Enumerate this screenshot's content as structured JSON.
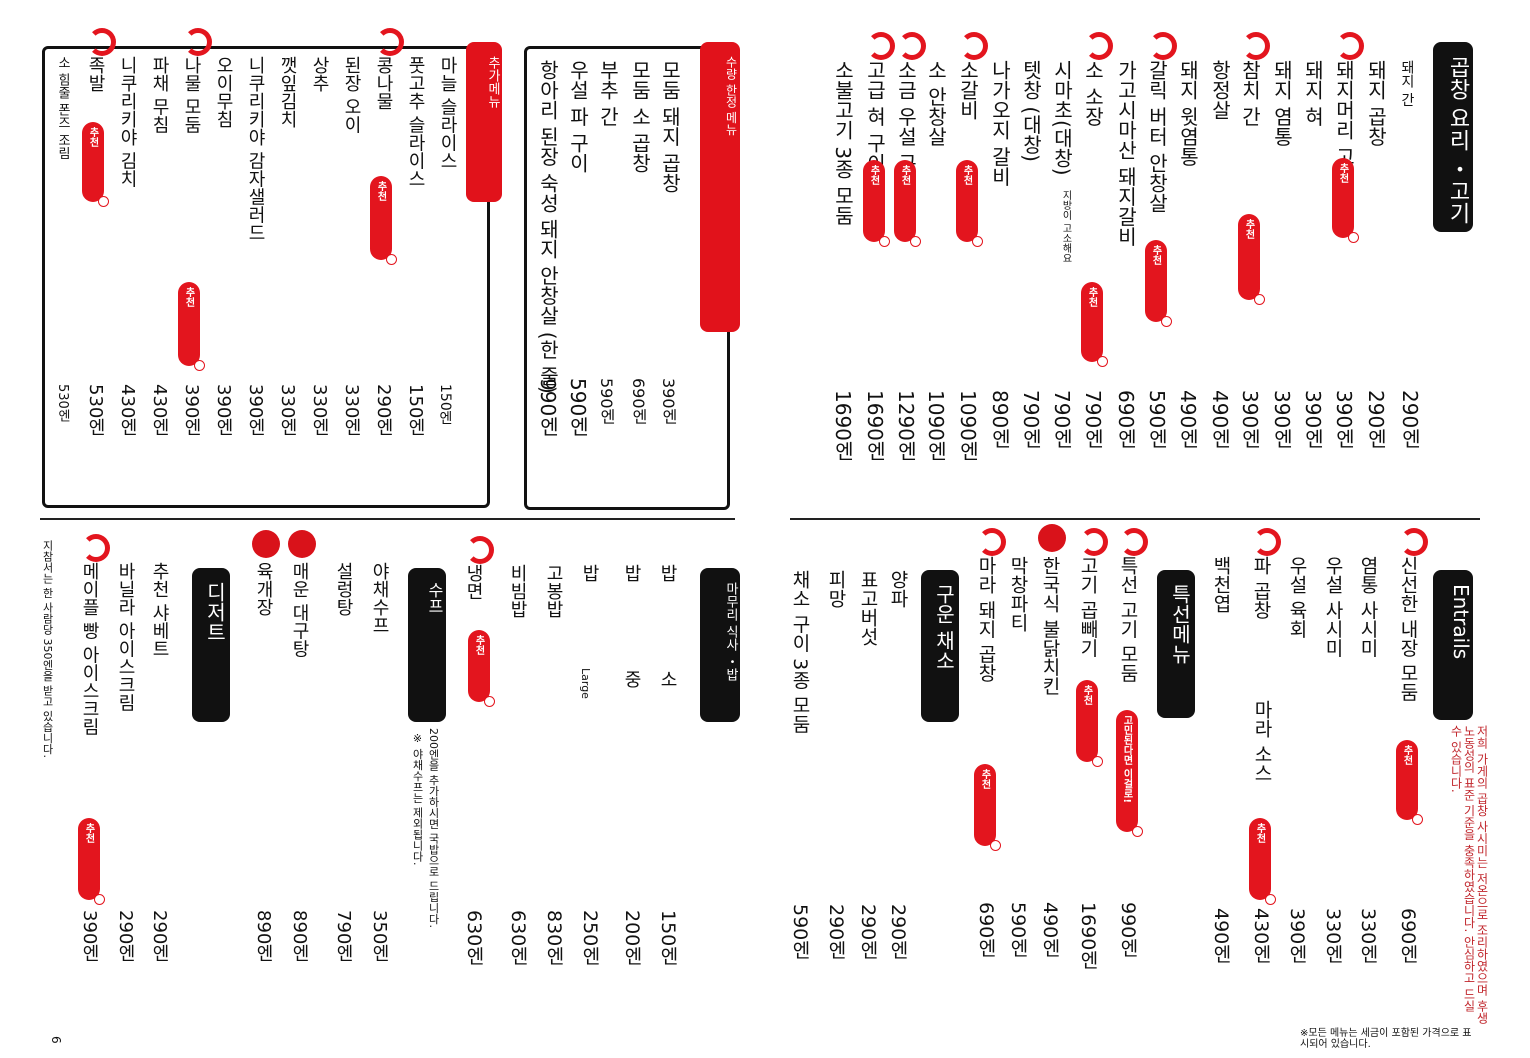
{
  "goopchang": {
    "title": "곱창 요리 ・고기",
    "items": [
      {
        "name": "돼지 간",
        "price": "290엔"
      },
      {
        "name": "돼지 곱창",
        "price": "290엔"
      },
      {
        "name": "돼지머리 고기",
        "price": "390엔",
        "badge": "추천"
      },
      {
        "name": "돼지 혀",
        "price": "390엔"
      },
      {
        "name": "돼지 염통",
        "price": "390엔"
      },
      {
        "name": "참치 간",
        "price": "390엔",
        "badge": "추천"
      },
      {
        "name": "항정살",
        "price": "490엔"
      },
      {
        "name": "돼지 윗염통",
        "price": "490엔"
      },
      {
        "name": "갈릭 버터 안창살",
        "price": "590엔",
        "badge": "추천"
      },
      {
        "name": "가고시마산 돼지갈비",
        "price": "690엔"
      },
      {
        "name": "소 소장",
        "price": "790엔",
        "badge": "추천",
        "note": "지방이 고소해요"
      },
      {
        "name": "시마초(대창)",
        "price": "790엔"
      },
      {
        "name": "텟창 (대창)",
        "price": "790엔"
      },
      {
        "name": "나가오지 갈비",
        "price": "890엔"
      },
      {
        "name": "소갈비",
        "price": "1090엔",
        "badge": "추천"
      },
      {
        "name": "소 안창살",
        "price": "1090엔"
      },
      {
        "name": "소금 우설 구이",
        "price": "1290엔",
        "badge": "추천"
      },
      {
        "name": "고급 혀 구이",
        "price": "1690엔",
        "badge": "추천"
      },
      {
        "name": "소불고기 3종 모둠",
        "price": "1690엔"
      }
    ]
  },
  "limited": {
    "title": "수량 한정 메뉴",
    "items": [
      {
        "name": "모둠 돼지 곱창",
        "price": "390엔"
      },
      {
        "name": "모둠 소 곱창",
        "price": "690엔"
      },
      {
        "name": "부추 간",
        "price": "590엔"
      },
      {
        "name": "우설 파 구이",
        "price": "590엔"
      },
      {
        "name": "항아리 된장 숙성 돼지 안창살 (한 줄)",
        "price": "990엔"
      }
    ]
  },
  "extra": {
    "title": "추가메뉴",
    "items": [
      {
        "name": "마늘 슬라이스",
        "price": "150엔"
      },
      {
        "name": "풋고추 슬라이스",
        "price": "150엔"
      },
      {
        "name": "콩나물",
        "price": "290엔",
        "badge": "추천"
      },
      {
        "name": "된장 오이",
        "price": "330엔"
      },
      {
        "name": "상추",
        "price": "330엔"
      },
      {
        "name": "깻잎김치",
        "price": "330엔"
      },
      {
        "name": "니쿠리키야 감자샐러드",
        "price": "390엔"
      },
      {
        "name": "오이무침",
        "price": "390엔"
      },
      {
        "name": "나물 모둠",
        "price": "390엔",
        "badge": "추천"
      },
      {
        "name": "파채 무침",
        "price": "430엔"
      },
      {
        "name": "니쿠리키야 김치",
        "price": "430엔"
      },
      {
        "name": "족발",
        "price": "530엔",
        "badge": "추천"
      },
      {
        "name": "소 힘줄 폰즈 조림",
        "price": "530엔"
      }
    ]
  },
  "entrails": {
    "title": "Entrails",
    "items": [
      {
        "name": "신선한 내장 모둠",
        "price": "690엔",
        "badge": "추천"
      },
      {
        "name": "염통 사시미",
        "price": "330엔"
      },
      {
        "name": "우설 사시미",
        "price": "330엔"
      },
      {
        "name": "우설 육회",
        "price": "390엔"
      },
      {
        "name": "파 곱창",
        "price": "430엔",
        "extra": "마라 소스",
        "badge": "추천"
      },
      {
        "name": "백천엽",
        "price": "490엔"
      }
    ],
    "note": "저희 가게의 곱창 사시미는 저온으로 조리하였으며 후생노동성의 표준 기준을 충족하였습니다. 안심하고 드실 수 있습니다."
  },
  "special": {
    "title": "특선메뉴",
    "items": [
      {
        "name": "특선 고기 모둠",
        "price": "990엔",
        "badge": "고민된다면 이걸로!"
      },
      {
        "name": "고기 곱빼기",
        "price": "1690엔",
        "badge": "추천"
      },
      {
        "name": "한국식 불닭치킨",
        "price": "490엔"
      },
      {
        "name": "막창파티",
        "price": "590엔"
      },
      {
        "name": "마라 돼지 곱창",
        "price": "690엔",
        "badge": "추천"
      }
    ]
  },
  "grilled_veg": {
    "title": "구운 채소",
    "items": [
      {
        "name": "양파",
        "price": "290엔"
      },
      {
        "name": "표고버섯",
        "price": "290엔"
      },
      {
        "name": "피망",
        "price": "290엔"
      },
      {
        "name": "채소 구이 3종 모둠",
        "price": "590엔"
      }
    ]
  },
  "meal": {
    "title": "마무리 식사 ・밥",
    "items": [
      {
        "name": "밥",
        "size": "소",
        "price": "150엔"
      },
      {
        "name": "밥",
        "size": "중",
        "price": "200엔"
      },
      {
        "name": "밥",
        "size": "Large",
        "price": "250엔"
      },
      {
        "name": "고봉밥",
        "price": "830엔"
      },
      {
        "name": "비빔밥",
        "price": "630엔"
      },
      {
        "name": "냉면",
        "price": "630엔",
        "badge": "추천"
      }
    ]
  },
  "soup": {
    "title": "수프",
    "items": [
      {
        "name": "야채수프",
        "price": "350엔"
      },
      {
        "name": "설렁탕",
        "price": "790엔"
      },
      {
        "name": "매운 대구탕",
        "price": "890엔"
      },
      {
        "name": "육개장",
        "price": "890엔"
      }
    ],
    "note1": "200엔을 추가하시면 국밥으로 드립니다.",
    "note2": "※ 야채수프는 제외됩니다."
  },
  "dessert": {
    "title": "디저트",
    "items": [
      {
        "name": "추천 샤베트",
        "price": "290엔"
      },
      {
        "name": "바닐라 아이스크림",
        "price": "290엔"
      },
      {
        "name": "메이플 빵 아이스크림",
        "price": "390엔",
        "badge": "추천"
      }
    ]
  },
  "corkage": "지참서는 한 사람당 350엔을 받고 있습니다.",
  "tax_note": "※모든 메뉴는 세금이 포함된 가격으로 표시되어 있습니다.",
  "page_num": "6",
  "colors": {
    "accent": "#e3151e",
    "dark": "#111111"
  }
}
